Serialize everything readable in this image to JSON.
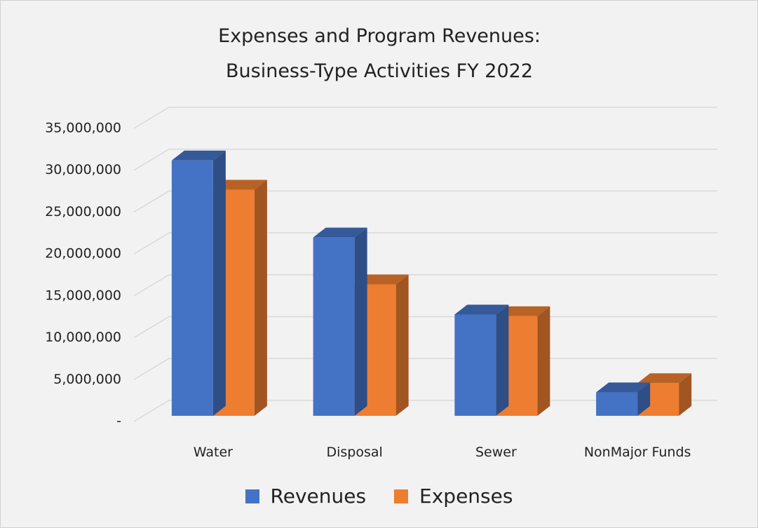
{
  "chart_data": {
    "type": "bar3d",
    "title": "Expenses and Program Revenues: Business-Type Activities FY 2022",
    "categories": [
      "Water",
      "Disposal",
      "Sewer",
      "NonMajor Funds"
    ],
    "series": [
      {
        "name": "Revenues",
        "color": "#4472c4",
        "values": [
          30500000,
          21300000,
          12100000,
          2800000
        ]
      },
      {
        "name": "Expenses",
        "color": "#ed7d31",
        "values": [
          27000000,
          15700000,
          11900000,
          3900000
        ]
      }
    ],
    "ylim": [
      0,
      35000000
    ],
    "yticks": [
      {
        "value": 0,
        "label": "-"
      },
      {
        "value": 5000000,
        "label": "5,000,000"
      },
      {
        "value": 10000000,
        "label": "10,000,000"
      },
      {
        "value": 15000000,
        "label": "15,000,000"
      },
      {
        "value": 20000000,
        "label": "20,000,000"
      },
      {
        "value": 25000000,
        "label": "25,000,000"
      },
      {
        "value": 30000000,
        "label": "30,000,000"
      },
      {
        "value": 35000000,
        "label": "35,000,000"
      }
    ],
    "grid": true,
    "legend": "bottom"
  }
}
